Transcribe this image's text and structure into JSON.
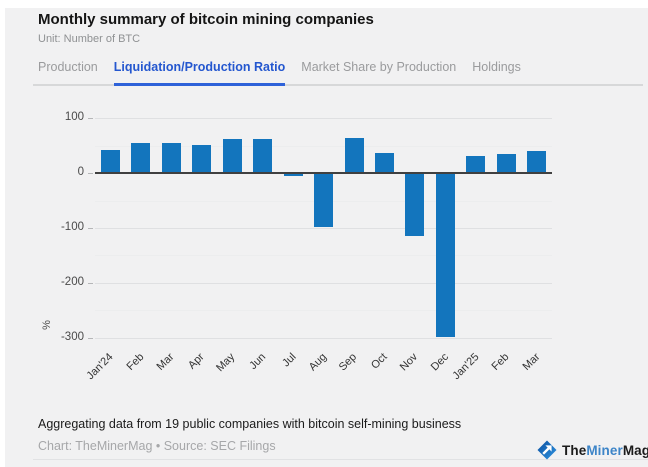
{
  "header": {
    "title": "Monthly summary of bitcoin mining companies",
    "subtitle": "Unit: Number of BTC"
  },
  "tabs": [
    {
      "label": "Production",
      "active": false
    },
    {
      "label": "Liquidation/Production Ratio",
      "active": true
    },
    {
      "label": "Market Share by Production",
      "active": false
    },
    {
      "label": "Holdings",
      "active": false
    }
  ],
  "chart_data": {
    "type": "bar",
    "title": "Monthly summary of bitcoin mining companies",
    "unit": "Number of BTC",
    "xlabel": "",
    "ylabel": "%",
    "categories": [
      "Jan'24",
      "Feb",
      "Mar",
      "Apr",
      "May",
      "Jun",
      "Jul",
      "Aug",
      "Sep",
      "Oct",
      "Nov",
      "Dec",
      "Jan'25",
      "Feb",
      "Mar"
    ],
    "values": [
      42,
      56,
      56,
      51,
      62,
      62,
      -3,
      -96,
      65,
      37,
      -113,
      -298,
      32,
      35,
      40
    ],
    "ylim": [
      -310,
      128
    ],
    "yticks": [
      100,
      0,
      -100,
      -200,
      -300
    ],
    "grid_step": 50,
    "grid": true,
    "legend_position": "none",
    "bar_color": "#1375bd"
  },
  "footer": {
    "note": "Aggregating data from 19 public companies with bitcoin self-mining business",
    "credit": "Chart: TheMinerMag • Source: SEC Filings",
    "logo": {
      "part1": "The",
      "part2": "Miner",
      "part3": "Mag"
    }
  },
  "colors": {
    "active_tab_blue": "#2457cf",
    "bar_blue": "#1375bd",
    "logo_blue": "#3d85c8",
    "background": "#f1f1f2"
  }
}
